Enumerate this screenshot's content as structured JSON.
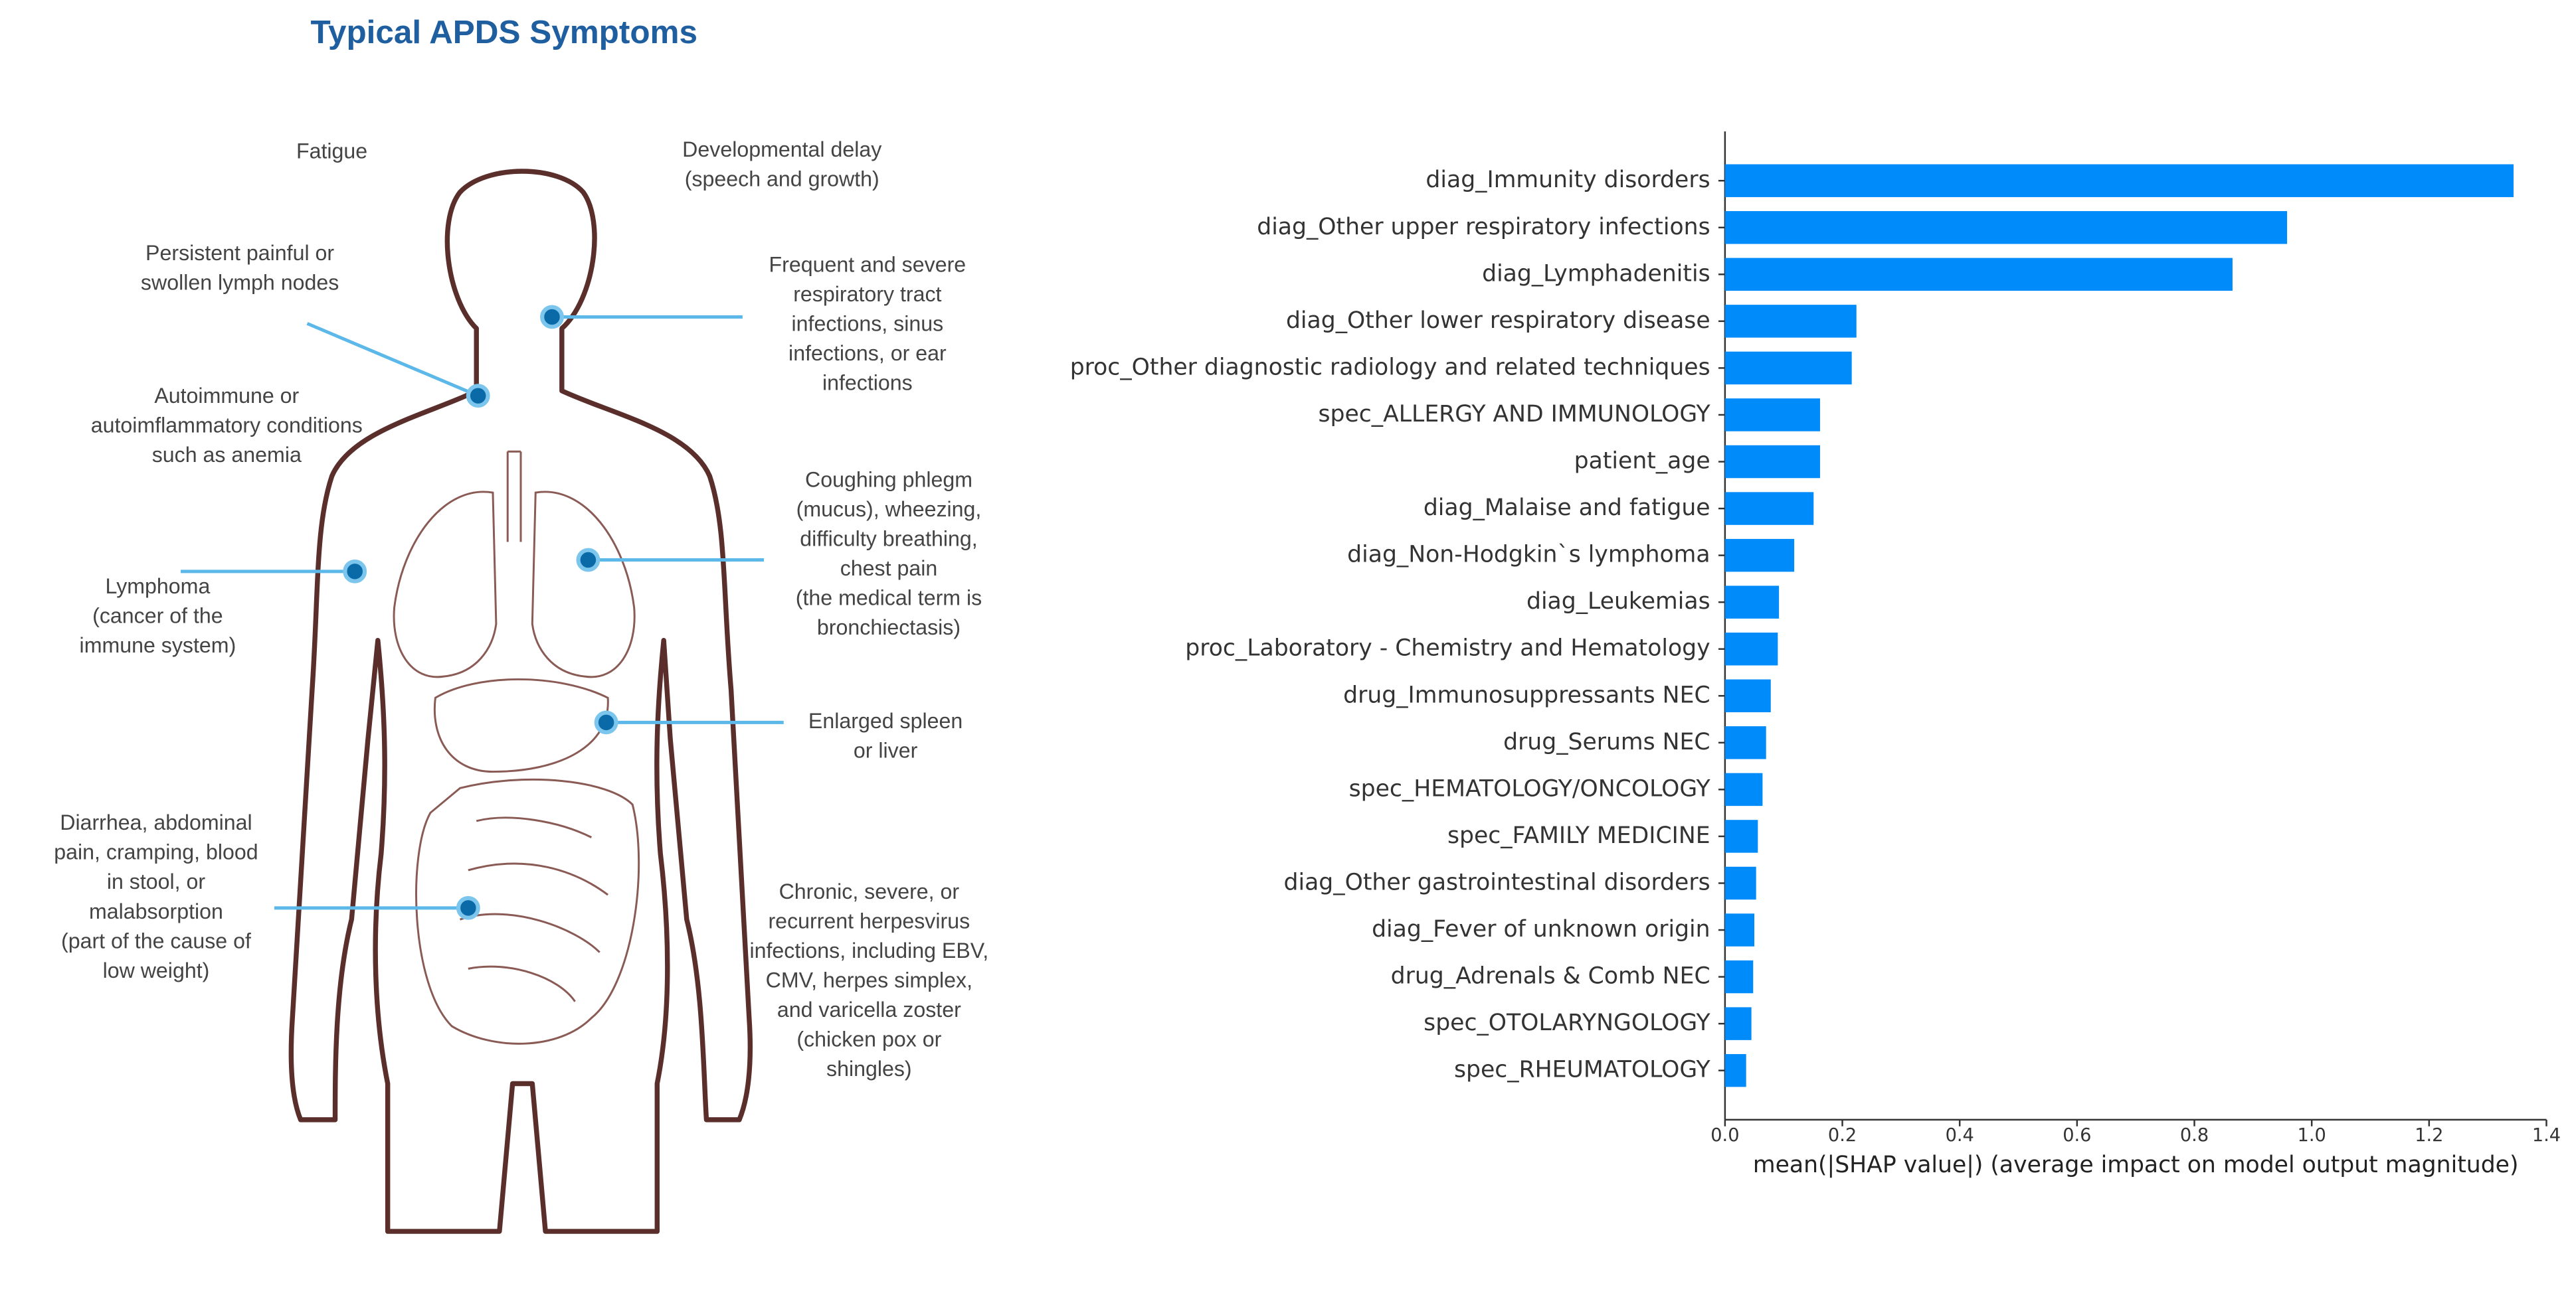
{
  "diagram": {
    "title": "Typical APDS Symptoms",
    "labels": [
      {
        "lines": [
          "Fatigue"
        ]
      },
      {
        "lines": [
          "Developmental delay",
          "(speech and growth)"
        ]
      },
      {
        "lines": [
          "Persistent painful or",
          "swollen lymph nodes"
        ]
      },
      {
        "lines": [
          "Frequent and severe",
          "respiratory tract",
          "infections, sinus",
          "infections, or ear",
          "infections"
        ]
      },
      {
        "lines": [
          "Autoimmune or",
          "autoimflammatory conditions",
          "such as anemia"
        ]
      },
      {
        "lines": [
          "Coughing phlegm",
          "(mucus), wheezing,",
          "difficulty breathing,",
          "chest pain",
          "(the medical term is",
          "bronchiectasis)"
        ]
      },
      {
        "lines": [
          "Lymphoma",
          "(cancer of the",
          "immune system)"
        ]
      },
      {
        "lines": [
          "Enlarged spleen",
          "or liver"
        ]
      },
      {
        "lines": [
          "Diarrhea, abdominal",
          "pain, cramping, blood",
          "in stool,  or",
          "malabsorption",
          "(part of the cause of",
          "low weight)"
        ]
      },
      {
        "lines": [
          "Chronic, severe, or",
          "recurrent herpesvirus",
          "infections, including EBV,",
          "CMV, herpes simplex,",
          "and varicella zoster",
          "(chicken pox or",
          "shingles)"
        ]
      }
    ]
  },
  "chart_data": {
    "type": "barh",
    "color": "#008bfb",
    "x_label": "mean(|SHAP value|) (average impact on model output magnitude)",
    "categories": [
      "diag_Immunity disorders",
      "diag_Other upper respiratory infections",
      "diag_Lymphadenitis",
      "diag_Other lower respiratory disease",
      "proc_Other diagnostic radiology and related techniques",
      "spec_ALLERGY AND IMMUNOLOGY",
      "patient_age",
      "diag_Malaise and fatigue",
      "diag_Non-Hodgkin`s lymphoma",
      "diag_Leukemias",
      "proc_Laboratory - Chemistry and Hematology",
      "drug_Immunosuppressants NEC",
      "drug_Serums NEC",
      "spec_HEMATOLOGY/ONCOLOGY",
      "spec_FAMILY MEDICINE",
      "diag_Other gastrointestinal disorders",
      "diag_Fever of unknown origin",
      "drug_Adrenals & Comb NEC",
      "spec_OTOLARYNGOLOGY",
      "spec_RHEUMATOLOGY"
    ],
    "values": [
      1.344,
      0.958,
      0.865,
      0.224,
      0.216,
      0.162,
      0.162,
      0.151,
      0.118,
      0.092,
      0.09,
      0.078,
      0.07,
      0.064,
      0.056,
      0.053,
      0.05,
      0.048,
      0.045,
      0.036
    ],
    "xlim": [
      0,
      1.4
    ],
    "xticks": [
      {
        "value": 0,
        "label": "0.0"
      },
      0.2,
      0.4,
      0.6,
      0.8,
      {
        "value": 1,
        "label": "1.0"
      },
      1.2,
      1.4
    ]
  }
}
